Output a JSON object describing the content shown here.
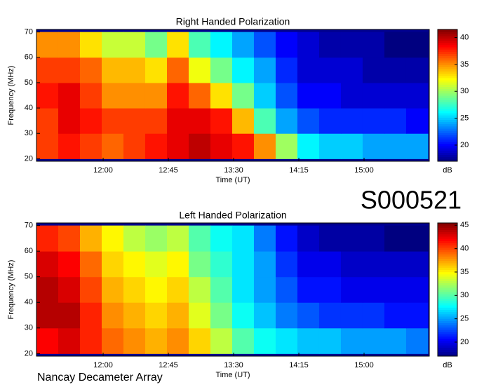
{
  "event_id": "S000521",
  "footer": "Nancay Decameter Array",
  "chart_data": [
    {
      "type": "heatmap",
      "title": "Right Handed Polarization",
      "xlabel": "Time (UT)",
      "ylabel": "Frequency (MHz)",
      "colorbar_label": "dB",
      "xlim": [
        674,
        945
      ],
      "ylim": [
        19,
        71
      ],
      "zlim": [
        17,
        41.5
      ],
      "xticks": [
        {
          "value": 720,
          "label": "12:00"
        },
        {
          "value": 765,
          "label": "12:45"
        },
        {
          "value": 810,
          "label": "13:30"
        },
        {
          "value": 855,
          "label": "14:15"
        },
        {
          "value": 900,
          "label": "15:00"
        }
      ],
      "yticks": [
        20,
        30,
        40,
        50,
        60,
        70
      ],
      "zticks": [
        20,
        25,
        30,
        35,
        40
      ],
      "x_bins": [
        674,
        689,
        704,
        719,
        734,
        749,
        764,
        779,
        794,
        809,
        824,
        839,
        854,
        869,
        884,
        899,
        914,
        929,
        944
      ],
      "y_bins": [
        20,
        30,
        40,
        50,
        60,
        70
      ],
      "z": [
        [
          37,
          38,
          37,
          36,
          37,
          38,
          39,
          40,
          39,
          38,
          35,
          30,
          26,
          25,
          25,
          24,
          24,
          24
        ],
        [
          37,
          39,
          38,
          37,
          37,
          37,
          39,
          39,
          38,
          34,
          28,
          24,
          22,
          21,
          21,
          21,
          21,
          20
        ],
        [
          38,
          39,
          37,
          35,
          35,
          35,
          38,
          36,
          33,
          29,
          25,
          22,
          20,
          20,
          19,
          19,
          19,
          19
        ],
        [
          37,
          37,
          36,
          34,
          34,
          33,
          36,
          32,
          29,
          26,
          24,
          21,
          19,
          19,
          19,
          18,
          18,
          18
        ],
        [
          35,
          35,
          33,
          31,
          31,
          29,
          33,
          28,
          26,
          24,
          22,
          20,
          19,
          18,
          18,
          18,
          17,
          17
        ]
      ]
    },
    {
      "type": "heatmap",
      "title": "Left Handed Polarization",
      "xlabel": "Time (UT)",
      "ylabel": "Frequency (MHz)",
      "colorbar_label": "dB",
      "xlim": [
        674,
        945
      ],
      "ylim": [
        19,
        71
      ],
      "zlim": [
        17,
        45.5
      ],
      "xticks": [
        {
          "value": 720,
          "label": "12:00"
        },
        {
          "value": 765,
          "label": "12:45"
        },
        {
          "value": 810,
          "label": "13:30"
        },
        {
          "value": 855,
          "label": "14:15"
        },
        {
          "value": 900,
          "label": "15:00"
        }
      ],
      "yticks": [
        20,
        30,
        40,
        50,
        60,
        70
      ],
      "zticks": [
        20,
        25,
        30,
        35,
        40,
        45
      ],
      "x_bins": [
        674,
        689,
        704,
        719,
        734,
        749,
        764,
        779,
        794,
        809,
        824,
        839,
        854,
        869,
        884,
        899,
        914,
        929,
        944
      ],
      "y_bins": [
        20,
        30,
        40,
        50,
        60,
        70
      ],
      "z": [
        [
          42,
          43,
          41,
          39,
          38,
          37,
          38,
          36,
          33,
          30,
          28,
          27,
          26,
          26,
          25,
          25,
          25,
          24
        ],
        [
          44,
          44,
          41,
          38,
          37,
          36,
          37,
          34,
          31,
          28,
          26,
          24,
          23,
          22,
          22,
          22,
          21,
          21
        ],
        [
          44,
          43,
          40,
          37,
          36,
          35,
          36,
          33,
          30,
          27,
          25,
          23,
          21,
          21,
          20,
          20,
          20,
          20
        ],
        [
          43,
          42,
          39,
          36,
          35,
          34,
          35,
          31,
          29,
          27,
          25,
          22,
          20,
          20,
          19,
          19,
          19,
          19
        ],
        [
          41,
          40,
          37,
          35,
          33,
          32,
          33,
          30,
          28,
          27,
          24,
          21,
          19,
          18,
          18,
          18,
          17,
          17
        ]
      ]
    }
  ]
}
